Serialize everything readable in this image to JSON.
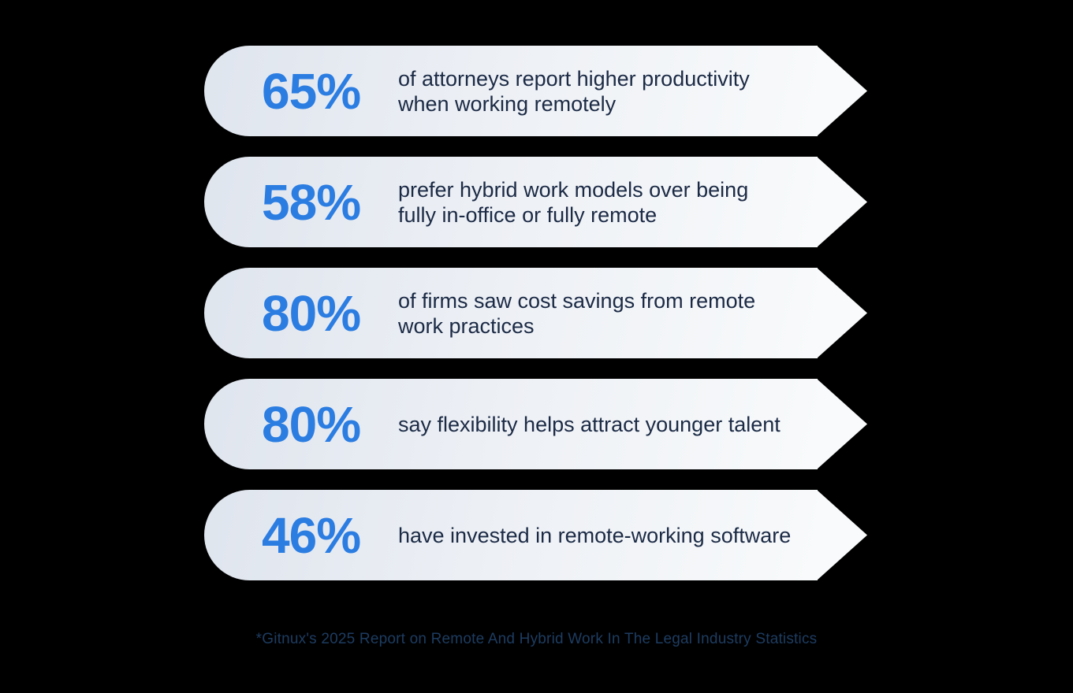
{
  "colors": {
    "background": "#000000",
    "percent_blue": "#2b7de2",
    "description_navy": "#1b2a45",
    "footer_blue": "#1d3c61",
    "banner_gradient_start": "#dfe5ee",
    "banner_gradient_end": "#f8fafb"
  },
  "banners": [
    {
      "percent": "65%",
      "description": "of attorneys report higher productivity when working remotely",
      "lines": [
        "of attorneys report higher productivity",
        "when working remotely"
      ]
    },
    {
      "percent": "58%",
      "description": "prefer hybrid work models over being fully in-office or fully remote",
      "lines": [
        "prefer hybrid work models over being",
        "fully in-office or fully remote"
      ]
    },
    {
      "percent": "80%",
      "description": "of firms saw cost savings from remote work practices",
      "lines": [
        "of firms saw cost savings from remote",
        "work practices"
      ]
    },
    {
      "percent": "80%",
      "description": "say flexibility helps attract younger talent",
      "lines": [
        "say flexibility helps attract younger talent"
      ]
    },
    {
      "percent": "46%",
      "description": "have invested in remote-working software",
      "lines": [
        "have invested in remote-working software"
      ]
    }
  ],
  "footer": {
    "text": "*Gitnux's 2025 Report on Remote And Hybrid Work In The Legal Industry Statistics"
  },
  "chart_data": {
    "type": "table",
    "categories": [
      "of attorneys report higher productivity when working remotely",
      "prefer hybrid work models over being fully in-office or fully remote",
      "of firms saw cost savings from remote work practices",
      "say flexibility helps attract younger talent",
      "have invested in remote-working software"
    ],
    "values": [
      65,
      58,
      80,
      80,
      46
    ],
    "unit": "%",
    "title": "",
    "source": "*Gitnux's 2025 Report on Remote And Hybrid Work In The Legal Industry Statistics"
  }
}
